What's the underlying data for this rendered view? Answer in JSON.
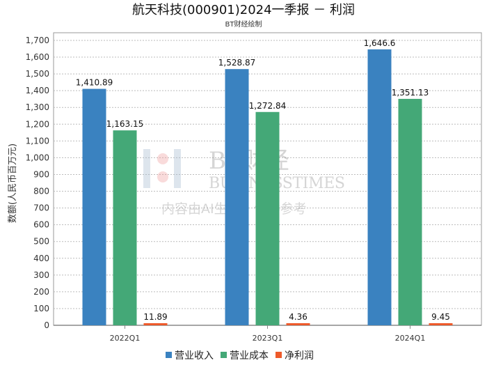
{
  "chart_data": {
    "type": "bar",
    "title": "航天科技(000901)2024一季报 － 利润",
    "subtitle": "BT财经绘制",
    "xlabel": "",
    "ylabel": "数额(人民币百万元)",
    "ylim": [
      0,
      1700
    ],
    "yticks": [
      0,
      100,
      200,
      300,
      400,
      500,
      600,
      700,
      800,
      900,
      1000,
      1100,
      1200,
      1300,
      1400,
      1500,
      1600,
      1700
    ],
    "ytick_labels": [
      "0",
      "100",
      "200",
      "300",
      "400",
      "500",
      "600",
      "700",
      "800",
      "900",
      "1,000",
      "1,100",
      "1,200",
      "1,300",
      "1,400",
      "1,500",
      "1,600",
      "1,700"
    ],
    "grid": true,
    "legend_position": "bottom",
    "categories": [
      "2022Q1",
      "2023Q1",
      "2024Q1"
    ],
    "series": [
      {
        "name": "营业收入",
        "color": "#3a82c0",
        "values": [
          1410.89,
          1528.87,
          1646.6
        ],
        "labels": [
          "1,410.89",
          "1,528.87",
          "1,646.6"
        ]
      },
      {
        "name": "营业成本",
        "color": "#44a877",
        "values": [
          1163.15,
          1272.84,
          1351.13
        ],
        "labels": [
          "1,163.15",
          "1,272.84",
          "1,351.13"
        ]
      },
      {
        "name": "净利润",
        "color": "#ee5a2a",
        "values": [
          11.89,
          4.36,
          9.45
        ],
        "labels": [
          "11.89",
          "4.36",
          "9.45"
        ]
      }
    ]
  },
  "watermark": {
    "brand": "BT财经",
    "english": "BUSINESSTIMES",
    "notice": "内容由AI生成，仅供参考"
  }
}
